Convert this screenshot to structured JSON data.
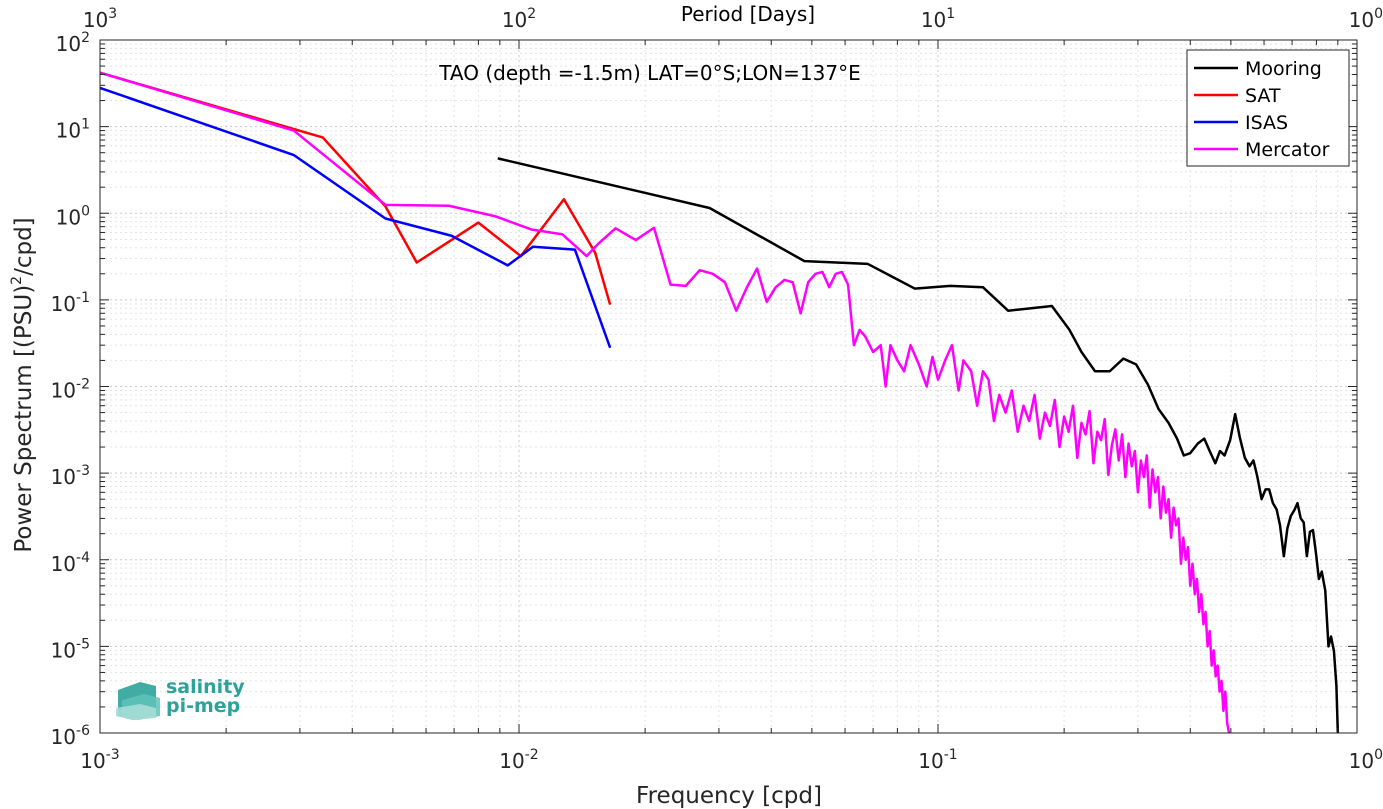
{
  "chart_data": {
    "type": "line",
    "annotation": "TAO (depth =-1.5m) LAT=0°S;LON=137°E",
    "xlabel": "Frequency [cpd]",
    "ylabel": "Power Spectrum [(PSU)",
    "ylabel_sup": "2",
    "ylabel_tail": "/cpd]",
    "top_xlabel": "Period [Days]",
    "x_scale": "log",
    "y_scale": "log",
    "xlim": [
      0.001,
      1
    ],
    "ylim": [
      1e-06,
      100
    ],
    "grid": true,
    "legend_position": "top-right",
    "x_ticks": [
      {
        "base": "10",
        "exp": "-3",
        "value": 0.001
      },
      {
        "base": "10",
        "exp": "-2",
        "value": 0.01
      },
      {
        "base": "10",
        "exp": "-1",
        "value": 0.1
      },
      {
        "base": "10",
        "exp": "0",
        "value": 1
      }
    ],
    "top_ticks": [
      {
        "base": "10",
        "exp": "3",
        "freq": 0.001
      },
      {
        "base": "10",
        "exp": "2",
        "freq": 0.01
      },
      {
        "base": "10",
        "exp": "1",
        "freq": 0.1
      },
      {
        "base": "10",
        "exp": "0",
        "freq": 1
      }
    ],
    "y_ticks": [
      {
        "base": "10",
        "exp": "2",
        "value": 100
      },
      {
        "base": "10",
        "exp": "1",
        "value": 10
      },
      {
        "base": "10",
        "exp": "0",
        "value": 1
      },
      {
        "base": "10",
        "exp": "-1",
        "value": 0.1
      },
      {
        "base": "10",
        "exp": "-2",
        "value": 0.01
      },
      {
        "base": "10",
        "exp": "-3",
        "value": 0.001
      },
      {
        "base": "10",
        "exp": "-4",
        "value": 0.0001
      },
      {
        "base": "10",
        "exp": "-5",
        "value": 1e-05
      },
      {
        "base": "10",
        "exp": "-6",
        "value": 1e-06
      }
    ],
    "series": [
      {
        "name": "Mooring",
        "color": "#000000",
        "points": [
          [
            0.0089,
            4.3
          ],
          [
            0.0285,
            1.15
          ],
          [
            0.048,
            0.28
          ],
          [
            0.068,
            0.26
          ],
          [
            0.088,
            0.135
          ],
          [
            0.107,
            0.145
          ],
          [
            0.128,
            0.14
          ],
          [
            0.147,
            0.075
          ],
          [
            0.167,
            0.08
          ],
          [
            0.187,
            0.085
          ],
          [
            0.206,
            0.045
          ],
          [
            0.22,
            0.025
          ],
          [
            0.237,
            0.015
          ],
          [
            0.257,
            0.015
          ],
          [
            0.277,
            0.021
          ],
          [
            0.297,
            0.018
          ],
          [
            0.317,
            0.0105
          ],
          [
            0.336,
            0.0055
          ],
          [
            0.355,
            0.0038
          ],
          [
            0.372,
            0.0025
          ],
          [
            0.386,
            0.0016
          ],
          [
            0.4,
            0.0017
          ],
          [
            0.417,
            0.0022
          ],
          [
            0.432,
            0.0025
          ],
          [
            0.445,
            0.0018
          ],
          [
            0.459,
            0.0013
          ],
          [
            0.471,
            0.0018
          ],
          [
            0.483,
            0.0016
          ],
          [
            0.498,
            0.0024
          ],
          [
            0.512,
            0.0048
          ],
          [
            0.525,
            0.0026
          ],
          [
            0.54,
            0.0015
          ],
          [
            0.554,
            0.0012
          ],
          [
            0.566,
            0.0014
          ],
          [
            0.578,
            0.00092
          ],
          [
            0.592,
            0.0005
          ],
          [
            0.605,
            0.00065
          ],
          [
            0.617,
            0.00065
          ],
          [
            0.63,
            0.00045
          ],
          [
            0.643,
            0.00038
          ],
          [
            0.655,
            0.00025
          ],
          [
            0.669,
            0.00011
          ],
          [
            0.682,
            0.00023
          ],
          [
            0.695,
            0.00032
          ],
          [
            0.708,
            0.00037
          ],
          [
            0.721,
            0.00045
          ],
          [
            0.734,
            0.0003
          ],
          [
            0.746,
            0.00027
          ],
          [
            0.759,
            0.00011
          ],
          [
            0.772,
            0.00021
          ],
          [
            0.785,
            0.00022
          ],
          [
            0.798,
            0.00012
          ],
          [
            0.811,
            6e-05
          ],
          [
            0.824,
            7.3e-05
          ],
          [
            0.84,
            4.4e-05
          ],
          [
            0.855,
            1e-05
          ],
          [
            0.867,
            1.3e-05
          ],
          [
            0.881,
            8.8e-06
          ],
          [
            0.893,
            3.5e-06
          ],
          [
            0.9,
            1e-06
          ]
        ]
      },
      {
        "name": "SAT",
        "color": "#ff0000",
        "points": [
          [
            0.001,
            42
          ],
          [
            0.0034,
            7.5
          ],
          [
            0.0048,
            1.2
          ],
          [
            0.0057,
            0.27
          ],
          [
            0.008,
            0.78
          ],
          [
            0.0101,
            0.32
          ],
          [
            0.0128,
            1.45
          ],
          [
            0.0152,
            0.35
          ],
          [
            0.0165,
            0.088
          ]
        ]
      },
      {
        "name": "ISAS",
        "color": "#0000ff",
        "points": [
          [
            0.001,
            28
          ],
          [
            0.0029,
            4.7
          ],
          [
            0.0048,
            0.87
          ],
          [
            0.0069,
            0.55
          ],
          [
            0.0094,
            0.25
          ],
          [
            0.0108,
            0.41
          ],
          [
            0.0136,
            0.38
          ],
          [
            0.0165,
            0.028
          ]
        ]
      },
      {
        "name": "Mercator",
        "color": "#ff00ff",
        "points": [
          [
            0.001,
            42
          ],
          [
            0.0029,
            9.0
          ],
          [
            0.0048,
            1.25
          ],
          [
            0.0068,
            1.22
          ],
          [
            0.0088,
            0.92
          ],
          [
            0.0107,
            0.65
          ],
          [
            0.0127,
            0.57
          ],
          [
            0.0145,
            0.32
          ],
          [
            0.0155,
            0.45
          ],
          [
            0.017,
            0.67
          ],
          [
            0.019,
            0.49
          ],
          [
            0.021,
            0.68
          ],
          [
            0.023,
            0.15
          ],
          [
            0.025,
            0.145
          ],
          [
            0.027,
            0.22
          ],
          [
            0.029,
            0.2
          ],
          [
            0.031,
            0.16
          ],
          [
            0.033,
            0.075
          ],
          [
            0.035,
            0.14
          ],
          [
            0.037,
            0.23
          ],
          [
            0.039,
            0.095
          ],
          [
            0.041,
            0.14
          ],
          [
            0.043,
            0.17
          ],
          [
            0.045,
            0.16
          ],
          [
            0.047,
            0.07
          ],
          [
            0.049,
            0.16
          ],
          [
            0.051,
            0.2
          ],
          [
            0.053,
            0.21
          ],
          [
            0.055,
            0.14
          ],
          [
            0.057,
            0.2
          ],
          [
            0.059,
            0.21
          ],
          [
            0.061,
            0.15
          ],
          [
            0.063,
            0.03
          ],
          [
            0.065,
            0.045
          ],
          [
            0.067,
            0.038
          ],
          [
            0.07,
            0.025
          ],
          [
            0.073,
            0.03
          ],
          [
            0.075,
            0.01
          ],
          [
            0.077,
            0.03
          ],
          [
            0.08,
            0.02
          ],
          [
            0.083,
            0.015
          ],
          [
            0.086,
            0.03
          ],
          [
            0.09,
            0.018
          ],
          [
            0.094,
            0.01
          ],
          [
            0.097,
            0.022
          ],
          [
            0.1,
            0.012
          ],
          [
            0.104,
            0.02
          ],
          [
            0.108,
            0.03
          ],
          [
            0.112,
            0.009
          ],
          [
            0.115,
            0.02
          ],
          [
            0.12,
            0.015
          ],
          [
            0.124,
            0.006
          ],
          [
            0.128,
            0.015
          ],
          [
            0.132,
            0.012
          ],
          [
            0.136,
            0.004
          ],
          [
            0.14,
            0.008
          ],
          [
            0.145,
            0.005
          ],
          [
            0.15,
            0.009
          ],
          [
            0.155,
            0.003
          ],
          [
            0.16,
            0.006
          ],
          [
            0.165,
            0.004
          ],
          [
            0.17,
            0.008
          ],
          [
            0.175,
            0.0025
          ],
          [
            0.18,
            0.005
          ],
          [
            0.185,
            0.0035
          ],
          [
            0.19,
            0.007
          ],
          [
            0.195,
            0.002
          ],
          [
            0.2,
            0.0045
          ],
          [
            0.205,
            0.003
          ],
          [
            0.21,
            0.006
          ],
          [
            0.215,
            0.0015
          ],
          [
            0.22,
            0.0038
          ],
          [
            0.225,
            0.0028
          ],
          [
            0.23,
            0.0052
          ],
          [
            0.235,
            0.0013
          ],
          [
            0.24,
            0.003
          ],
          [
            0.245,
            0.0024
          ],
          [
            0.25,
            0.0042
          ],
          [
            0.255,
            0.00095
          ],
          [
            0.26,
            0.0021
          ],
          [
            0.265,
            0.0032
          ],
          [
            0.27,
            0.0014
          ],
          [
            0.275,
            0.0028
          ],
          [
            0.28,
            0.0009
          ],
          [
            0.285,
            0.0022
          ],
          [
            0.29,
            0.0012
          ],
          [
            0.295,
            0.0018
          ],
          [
            0.3,
            0.0006
          ],
          [
            0.305,
            0.0014
          ],
          [
            0.31,
            0.0009
          ],
          [
            0.315,
            0.0016
          ],
          [
            0.32,
            0.0004
          ],
          [
            0.325,
            0.0011
          ],
          [
            0.33,
            0.0006
          ],
          [
            0.335,
            0.0009
          ],
          [
            0.34,
            0.0003
          ],
          [
            0.345,
            0.0007
          ],
          [
            0.35,
            0.00035
          ],
          [
            0.355,
            0.0005
          ],
          [
            0.36,
            0.00018
          ],
          [
            0.365,
            0.0004
          ],
          [
            0.37,
            0.00025
          ],
          [
            0.375,
            0.0003
          ],
          [
            0.38,
            9e-05
          ],
          [
            0.385,
            0.00018
          ],
          [
            0.39,
            0.0001
          ],
          [
            0.395,
            0.00014
          ],
          [
            0.4,
            5e-05
          ],
          [
            0.405,
            9e-05
          ],
          [
            0.41,
            4e-05
          ],
          [
            0.415,
            6e-05
          ],
          [
            0.42,
            2.5e-05
          ],
          [
            0.425,
            4e-05
          ],
          [
            0.43,
            1.8e-05
          ],
          [
            0.435,
            2.5e-05
          ],
          [
            0.44,
            1e-05
          ],
          [
            0.445,
            1.5e-05
          ],
          [
            0.45,
            6e-06
          ],
          [
            0.455,
            9e-06
          ],
          [
            0.46,
            4.5e-06
          ],
          [
            0.465,
            6e-06
          ],
          [
            0.47,
            3e-06
          ],
          [
            0.475,
            4e-06
          ],
          [
            0.48,
            1.8e-06
          ],
          [
            0.485,
            3e-06
          ],
          [
            0.49,
            1.3e-06
          ],
          [
            0.495,
            1e-06
          ]
        ]
      }
    ]
  },
  "logo": {
    "line1": "salinity",
    "line2": "pi-mep",
    "color": "#2ba39a"
  }
}
